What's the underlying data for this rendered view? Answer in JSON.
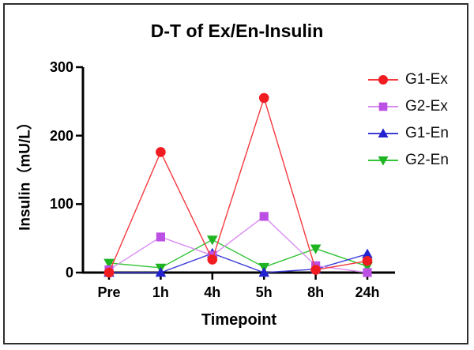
{
  "frame": {
    "border_color": "#2e2e2e",
    "background": "#ffffff"
  },
  "chart_data": {
    "type": "line",
    "title": "D-T of Ex/En-Insulin",
    "xlabel": "Timepoint",
    "ylabel": "Insulin（mU/L）",
    "categories": [
      "Pre",
      "1h",
      "4h",
      "5h",
      "8h",
      "24h"
    ],
    "y_ticks": [
      0,
      100,
      200,
      300
    ],
    "ylim": [
      0,
      300
    ],
    "grid": false,
    "legend_position": "top-right",
    "axis_color": "#000000",
    "series": [
      {
        "name": "G1-Ex",
        "marker": "circle",
        "color": "#f11c22",
        "line_color": "#f4393e",
        "values": [
          0,
          176,
          19,
          255,
          4,
          17
        ]
      },
      {
        "name": "G2-Ex",
        "marker": "square",
        "color": "#bc4fe4",
        "line_color": "#d98df2",
        "values": [
          4,
          52,
          25,
          82,
          10,
          0
        ]
      },
      {
        "name": "G1-En",
        "marker": "triangle-up",
        "color": "#2222cf",
        "line_color": "#3c3cd8",
        "values": [
          0,
          0,
          28,
          0,
          5,
          27
        ]
      },
      {
        "name": "G2-En",
        "marker": "triangle-down",
        "color": "#1eb422",
        "line_color": "#33c437",
        "values": [
          14,
          7,
          48,
          8,
          35,
          9
        ]
      }
    ]
  }
}
